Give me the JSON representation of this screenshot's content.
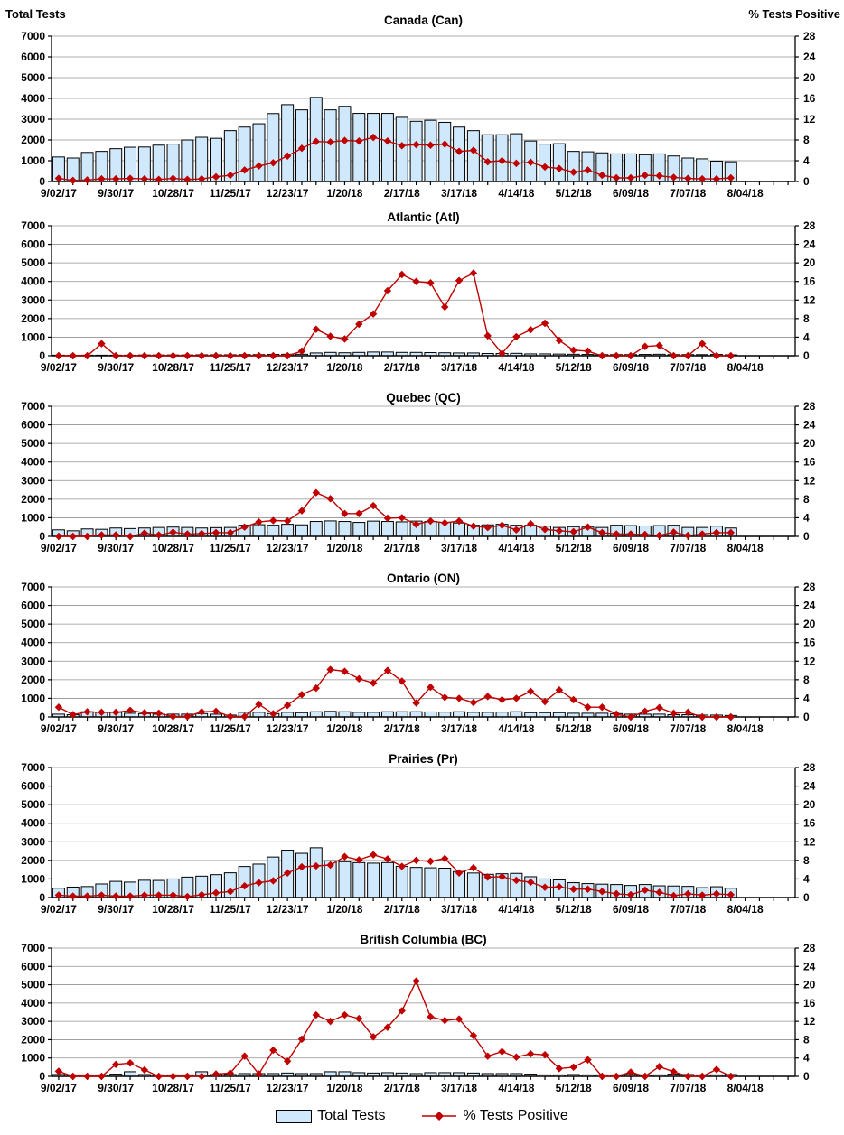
{
  "page": {
    "left_axis_header": "Total Tests",
    "right_axis_header": "% Tests Positive"
  },
  "legend": {
    "items": [
      {
        "label": "Total Tests",
        "swatch": "bar"
      },
      {
        "label": "% Tests Positive",
        "swatch": "line-diamond"
      }
    ]
  },
  "colors": {
    "bar_fill": "#CFE8FB",
    "bar_stroke": "#000000",
    "line": "#C00000",
    "gridline": "#909090",
    "axis": "#000000",
    "text": "#000000"
  },
  "chart_data": {
    "type": "combo-bar-line",
    "left_axis": {
      "title": "Total Tests",
      "min": 0,
      "max": 7000,
      "step": 1000
    },
    "right_axis": {
      "title": "% Tests Positive",
      "min": 0,
      "max": 28,
      "step": 4
    },
    "x_axis_labels_shown": [
      "9/02/17",
      "9/30/17",
      "10/28/17",
      "11/25/17",
      "12/23/17",
      "1/20/18",
      "2/17/18",
      "3/17/18",
      "4/14/18",
      "5/12/18",
      "6/09/18",
      "7/07/18",
      "8/04/18"
    ],
    "categories": [
      "9/02/17",
      "9/09/17",
      "9/16/17",
      "9/23/17",
      "9/30/17",
      "10/07/17",
      "10/14/17",
      "10/21/17",
      "10/28/17",
      "11/04/17",
      "11/11/17",
      "11/18/17",
      "11/25/17",
      "12/02/17",
      "12/09/17",
      "12/16/17",
      "12/23/17",
      "12/30/17",
      "1/06/18",
      "1/13/18",
      "1/20/18",
      "1/27/18",
      "2/03/18",
      "2/10/18",
      "2/17/18",
      "2/24/18",
      "3/03/18",
      "3/10/18",
      "3/17/18",
      "3/24/18",
      "3/31/18",
      "4/07/18",
      "4/14/18",
      "4/21/18",
      "4/28/18",
      "5/05/18",
      "5/12/18",
      "5/19/18",
      "5/26/18",
      "6/02/18",
      "6/09/18",
      "6/16/18",
      "6/23/18",
      "6/30/18",
      "7/07/18",
      "7/14/18",
      "7/21/18",
      "7/28/18"
    ],
    "charts": [
      {
        "title": "Canada (Can)",
        "total_tests": [
          1180,
          1130,
          1400,
          1450,
          1580,
          1650,
          1660,
          1750,
          1800,
          2000,
          2130,
          2080,
          2450,
          2620,
          2780,
          3270,
          3700,
          3450,
          4050,
          3450,
          3620,
          3280,
          3280,
          3280,
          3090,
          2900,
          2950,
          2850,
          2620,
          2450,
          2250,
          2250,
          2300,
          1950,
          1800,
          1820,
          1450,
          1430,
          1380,
          1330,
          1330,
          1290,
          1330,
          1230,
          1130,
          1090,
          980,
          950
        ],
        "pct_positive": [
          0.6,
          0.2,
          0.3,
          0.5,
          0.5,
          0.6,
          0.5,
          0.4,
          0.6,
          0.4,
          0.5,
          0.9,
          1.2,
          2.2,
          3.0,
          3.6,
          4.9,
          6.4,
          7.7,
          7.6,
          7.9,
          7.8,
          8.5,
          7.8,
          6.9,
          7.1,
          7.0,
          7.2,
          5.8,
          6.0,
          3.8,
          4.0,
          3.5,
          3.7,
          2.8,
          2.5,
          1.8,
          2.2,
          1.2,
          0.7,
          0.7,
          1.2,
          1.1,
          0.8,
          0.6,
          0.5,
          0.5,
          0.7
        ]
      },
      {
        "title": "Atlantic (Atl)",
        "total_tests": [
          30,
          20,
          30,
          30,
          30,
          30,
          40,
          40,
          40,
          40,
          50,
          50,
          50,
          60,
          60,
          70,
          80,
          80,
          150,
          180,
          160,
          180,
          200,
          200,
          180,
          180,
          170,
          160,
          150,
          150,
          120,
          120,
          130,
          100,
          100,
          90,
          80,
          70,
          60,
          60,
          60,
          70,
          80,
          60,
          60,
          60,
          70,
          50
        ],
        "pct_positive": [
          0,
          0,
          0,
          2.6,
          0,
          0,
          0,
          0,
          0,
          0,
          0,
          0,
          0,
          0,
          0,
          0,
          0,
          1.0,
          5.7,
          4.2,
          3.6,
          6.8,
          9.0,
          14.0,
          17.5,
          16.0,
          15.7,
          10.5,
          16.2,
          17.8,
          4.3,
          0.5,
          4.1,
          5.6,
          7.0,
          3.3,
          1.2,
          1.0,
          0,
          0,
          0,
          2.0,
          2.2,
          0,
          0,
          2.6,
          0,
          0
        ]
      },
      {
        "title": "Quebec (QC)",
        "total_tests": [
          350,
          300,
          400,
          380,
          450,
          420,
          450,
          480,
          500,
          480,
          450,
          470,
          480,
          600,
          630,
          600,
          650,
          620,
          800,
          830,
          800,
          750,
          820,
          800,
          780,
          820,
          800,
          750,
          720,
          600,
          620,
          650,
          600,
          600,
          550,
          480,
          520,
          500,
          480,
          600,
          580,
          560,
          580,
          600,
          480,
          480,
          550,
          450
        ],
        "pct_positive": [
          0,
          0,
          0,
          0.3,
          0.3,
          0,
          0.7,
          0.3,
          0.9,
          0.5,
          0.6,
          0.8,
          0.8,
          2.0,
          3.1,
          3.4,
          3.3,
          5.5,
          9.4,
          8.1,
          4.9,
          4.9,
          6.6,
          3.9,
          4.0,
          2.6,
          3.3,
          2.9,
          3.3,
          2.2,
          1.9,
          2.4,
          1.4,
          2.7,
          1.5,
          1.2,
          1.0,
          2.0,
          0.8,
          0.5,
          0.5,
          0.4,
          0.2,
          0.9,
          0.2,
          0.5,
          0.8,
          0.8
        ]
      },
      {
        "title": "Ontario (ON)",
        "total_tests": [
          150,
          120,
          280,
          250,
          250,
          200,
          180,
          150,
          150,
          150,
          180,
          150,
          100,
          250,
          250,
          180,
          250,
          230,
          280,
          300,
          280,
          250,
          250,
          280,
          280,
          280,
          270,
          260,
          280,
          250,
          250,
          260,
          280,
          230,
          230,
          230,
          200,
          200,
          200,
          180,
          150,
          150,
          150,
          120,
          120,
          100,
          100,
          80
        ],
        "pct_positive": [
          2.1,
          0.5,
          1.1,
          1.0,
          1.0,
          1.4,
          0.9,
          0.8,
          0.1,
          0.1,
          1.1,
          1.2,
          0.1,
          0.1,
          2.7,
          0.7,
          2.5,
          4.8,
          6.2,
          10.2,
          9.8,
          8.2,
          7.3,
          10.0,
          7.7,
          3.0,
          6.4,
          4.2,
          4.0,
          3.1,
          4.4,
          3.7,
          4.0,
          5.5,
          3.3,
          5.8,
          3.7,
          2.1,
          2.1,
          0.6,
          0,
          1.2,
          2.0,
          0.8,
          1.0,
          0,
          0,
          0
        ]
      },
      {
        "title": "Prairies (Pr)",
        "total_tests": [
          500,
          560,
          590,
          730,
          870,
          830,
          930,
          920,
          1000,
          1100,
          1150,
          1230,
          1330,
          1670,
          1800,
          2180,
          2550,
          2380,
          2680,
          1980,
          1930,
          1880,
          1850,
          1880,
          1680,
          1620,
          1600,
          1580,
          1400,
          1320,
          1250,
          1280,
          1300,
          1120,
          1000,
          950,
          800,
          750,
          720,
          700,
          650,
          700,
          630,
          620,
          600,
          530,
          580,
          500
        ],
        "pct_positive": [
          0.5,
          0.3,
          0.3,
          0.5,
          0.3,
          0.3,
          0.5,
          0.5,
          0.5,
          0.2,
          0.6,
          1.0,
          1.3,
          2.5,
          3.2,
          3.6,
          5.3,
          6.6,
          6.8,
          7.0,
          8.8,
          8.1,
          9.2,
          8.3,
          6.7,
          8.0,
          7.8,
          8.4,
          5.3,
          6.4,
          4.4,
          4.5,
          3.7,
          3.3,
          2.2,
          2.3,
          1.8,
          1.8,
          1.3,
          0.8,
          0.6,
          1.6,
          1.1,
          0.4,
          0.8,
          0.5,
          0.8,
          0.6
        ]
      },
      {
        "title": "British Columbia (BC)",
        "total_tests": [
          100,
          80,
          80,
          80,
          120,
          250,
          100,
          80,
          80,
          80,
          250,
          100,
          100,
          150,
          150,
          150,
          180,
          150,
          150,
          250,
          250,
          200,
          180,
          200,
          180,
          150,
          200,
          200,
          200,
          180,
          150,
          150,
          150,
          120,
          80,
          80,
          100,
          80,
          80,
          80,
          100,
          80,
          80,
          120,
          100,
          80,
          80,
          100
        ],
        "pct_positive": [
          1.1,
          0,
          0,
          0,
          2.6,
          2.9,
          1.4,
          0,
          0,
          0,
          0,
          0.5,
          0.7,
          4.4,
          0.5,
          5.7,
          3.3,
          8.1,
          13.4,
          12.0,
          13.4,
          12.6,
          8.6,
          10.7,
          14.3,
          20.8,
          13.0,
          12.2,
          12.5,
          8.9,
          4.4,
          5.4,
          4.2,
          4.9,
          4.7,
          1.7,
          2.0,
          3.6,
          0,
          0,
          0.9,
          0,
          2.1,
          1.0,
          0,
          0,
          1.5,
          0
        ]
      }
    ]
  }
}
